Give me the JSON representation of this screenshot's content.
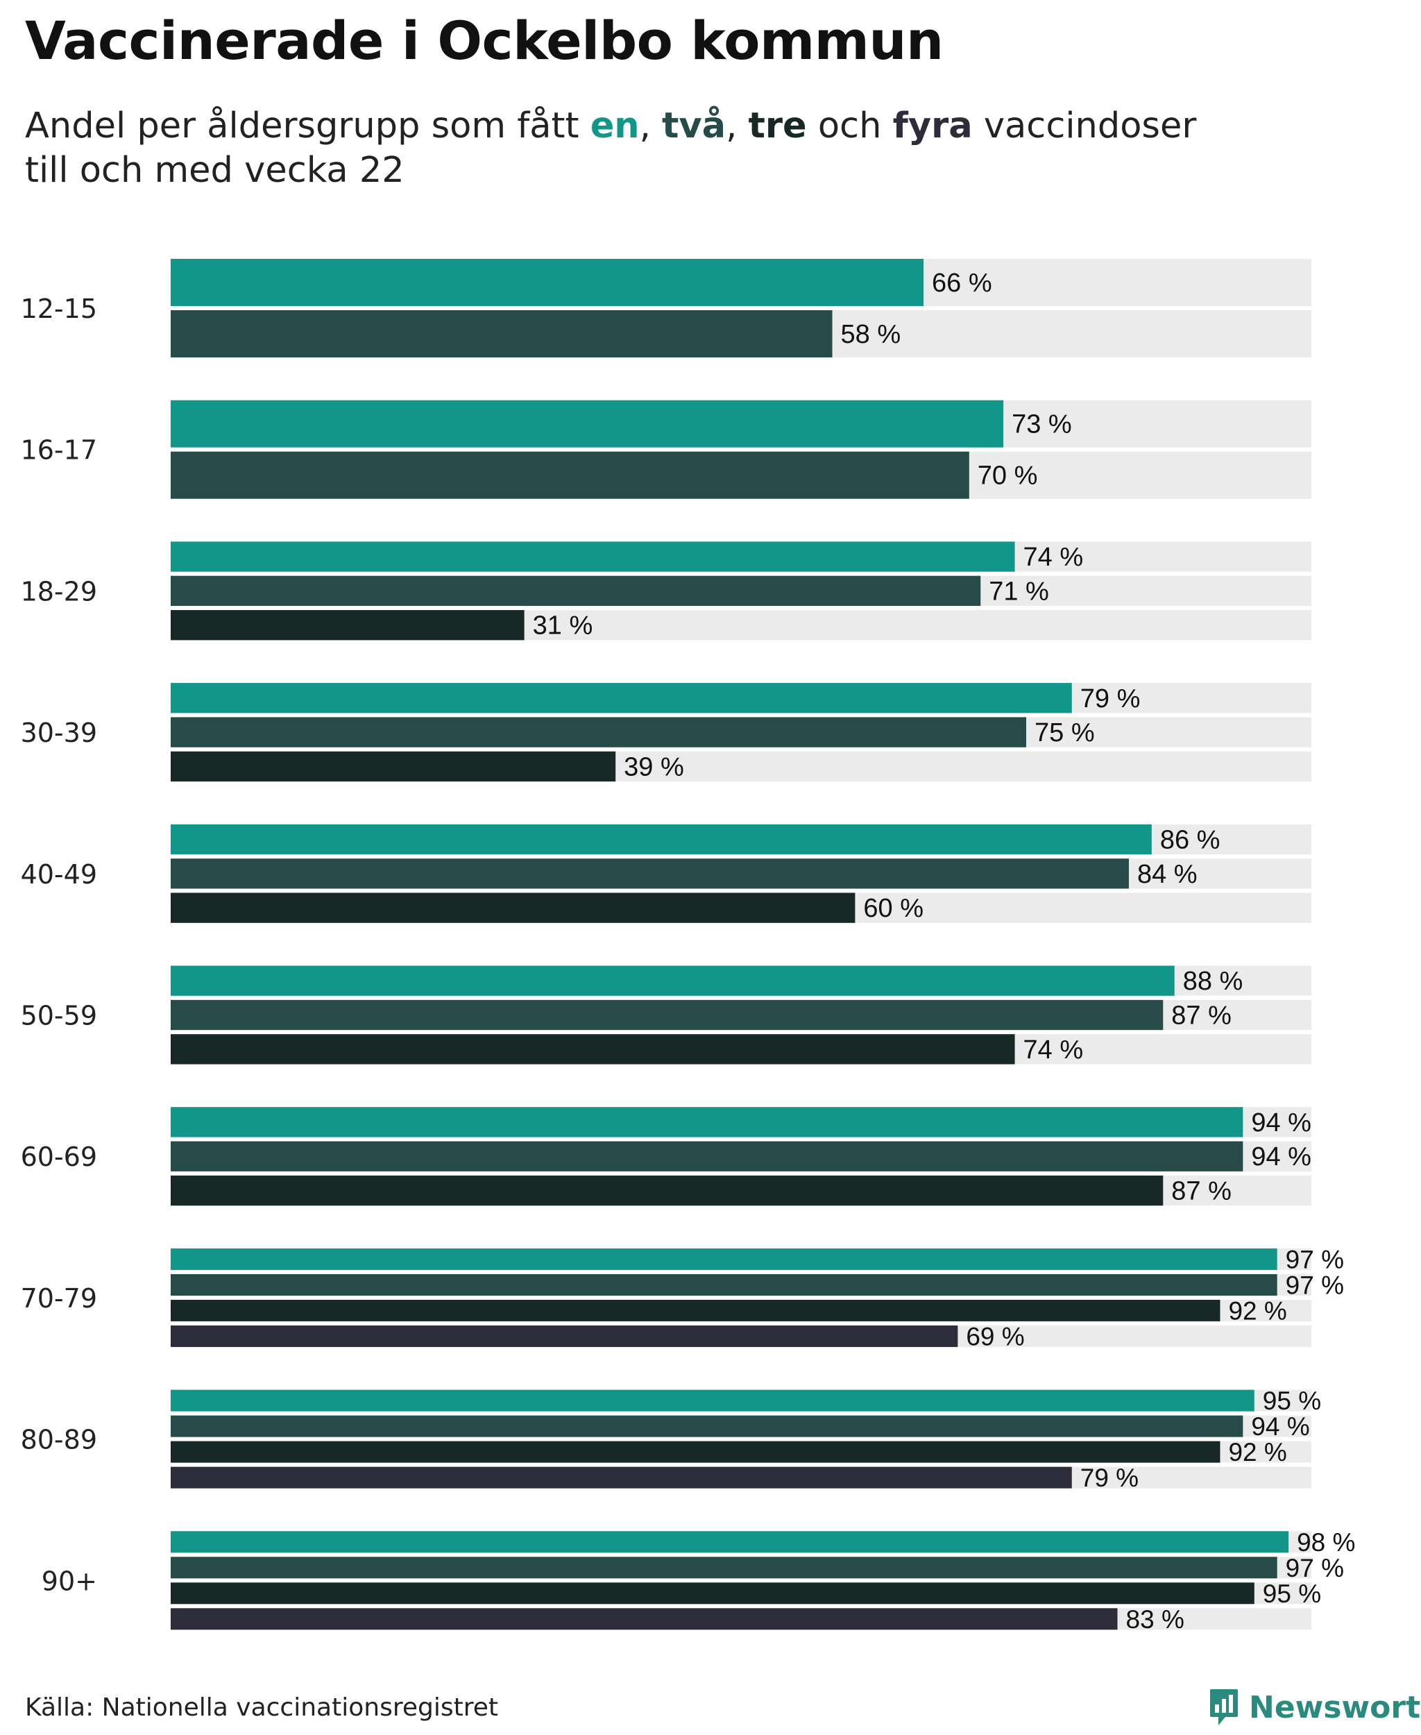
{
  "title": "Vaccinerade i Ockelbo kommun",
  "subtitle": {
    "prefix": "Andel per åldersgrupp som fått ",
    "dose1": "en",
    "sep1": ", ",
    "dose2": "två",
    "sep2": ", ",
    "dose3": "tre",
    "sep3": " och ",
    "dose4": "fyra",
    "suffix_line1": " vaccindoser",
    "line2": "till och med vecka 22"
  },
  "colors": {
    "dose1": "#13968a",
    "dose2": "#264b48",
    "dose3": "#182826",
    "dose4": "#2d2c3a",
    "track": "#ebebeb"
  },
  "chart_data": {
    "type": "bar",
    "orientation": "horizontal",
    "title": "Vaccinerade i Ockelbo kommun",
    "xlim": [
      0,
      100
    ],
    "unit": " %",
    "categories": [
      "12-15",
      "16-17",
      "18-29",
      "30-39",
      "40-49",
      "50-59",
      "60-69",
      "70-79",
      "80-89",
      "90+"
    ],
    "series": [
      {
        "name": "en",
        "values": [
          66,
          73,
          74,
          79,
          86,
          88,
          94,
          97,
          95,
          98
        ]
      },
      {
        "name": "två",
        "values": [
          58,
          70,
          71,
          75,
          84,
          87,
          94,
          97,
          94,
          97
        ]
      },
      {
        "name": "tre",
        "values": [
          null,
          null,
          31,
          39,
          60,
          74,
          87,
          92,
          92,
          95
        ]
      },
      {
        "name": "fyra",
        "values": [
          null,
          null,
          null,
          null,
          null,
          null,
          null,
          69,
          79,
          83
        ]
      }
    ]
  },
  "footer": {
    "source": "Källa: Nationella vaccinationsregistret",
    "brand": "Newsworthy",
    "brand_icon": "bar-chart-speech-bubble-icon"
  }
}
